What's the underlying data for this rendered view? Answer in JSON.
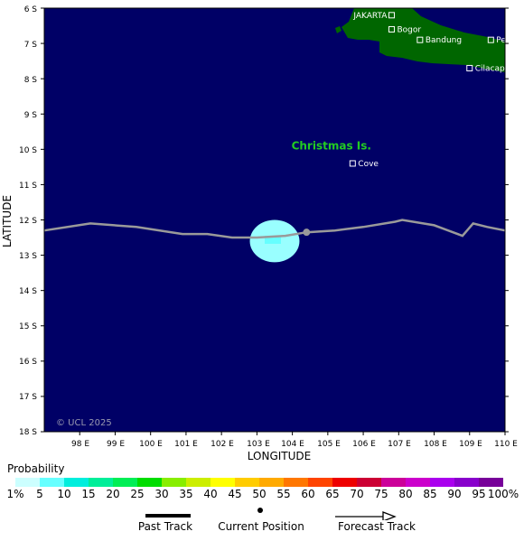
{
  "map": {
    "latitude_label": "LATITUDE",
    "longitude_label": "LONGITUDE",
    "lat_ticks": [
      "6 S",
      "7 S",
      "8 S",
      "9 S",
      "10 S",
      "11 S",
      "12 S",
      "13 S",
      "14 S",
      "15 S",
      "16 S",
      "17 S",
      "18 S"
    ],
    "lon_ticks": [
      "98 E",
      "99 E",
      "100 E",
      "101 E",
      "102 E",
      "103 E",
      "104 E",
      "105 E",
      "106 E",
      "107 E",
      "108 E",
      "109 E",
      "110 E"
    ],
    "lat_range": [
      6,
      18
    ],
    "lon_range": [
      97,
      110
    ],
    "ocean_color": "#000066",
    "land_color": "#006600",
    "copyright": "© UCL 2025",
    "island_label": "Christmas Is.",
    "places": [
      {
        "name": "JAKARTA",
        "lon": 106.8,
        "lat": 6.2
      },
      {
        "name": "Bogor",
        "lon": 106.8,
        "lat": 6.6
      },
      {
        "name": "Bandung",
        "lon": 107.6,
        "lat": 6.9
      },
      {
        "name": "Pekalongan",
        "lon": 109.6,
        "lat": 6.9
      },
      {
        "name": "Cilacap",
        "lon": 109.0,
        "lat": 7.7
      },
      {
        "name": "Cove",
        "lon": 105.7,
        "lat": 10.4
      }
    ],
    "track": [
      [
        97,
        12.3
      ],
      [
        98.3,
        12.1
      ],
      [
        99.6,
        12.2
      ],
      [
        100.9,
        12.4
      ],
      [
        101.6,
        12.4
      ],
      [
        102.3,
        12.5
      ],
      [
        103.0,
        12.5
      ],
      [
        103.8,
        12.45
      ],
      [
        104.4,
        12.35
      ],
      [
        105.2,
        12.3
      ],
      [
        106.0,
        12.2
      ],
      [
        106.9,
        12.05
      ],
      [
        107.1,
        12.0
      ],
      [
        108.0,
        12.15
      ],
      [
        108.8,
        12.45
      ],
      [
        109.1,
        12.1
      ],
      [
        109.5,
        12.2
      ],
      [
        110,
        12.3
      ]
    ],
    "current_position": {
      "lon": 104.4,
      "lat": 12.35
    },
    "probability_area": {
      "lon_min": 102.8,
      "lon_max": 104.2,
      "lat_min": 12.0,
      "lat_max": 13.2,
      "color": "#99ffff"
    }
  },
  "legend": {
    "probability_title": "Probability",
    "scale": [
      {
        "label": "1%",
        "color": "#ccffff"
      },
      {
        "label": "5",
        "color": "#66ffff"
      },
      {
        "label": "10",
        "color": "#00eedd"
      },
      {
        "label": "15",
        "color": "#00ee99"
      },
      {
        "label": "20",
        "color": "#00ee55"
      },
      {
        "label": "25",
        "color": "#00dd00"
      },
      {
        "label": "30",
        "color": "#88ee00"
      },
      {
        "label": "35",
        "color": "#ccee00"
      },
      {
        "label": "40",
        "color": "#ffff00"
      },
      {
        "label": "45",
        "color": "#ffcc00"
      },
      {
        "label": "50",
        "color": "#ffaa00"
      },
      {
        "label": "55",
        "color": "#ff7700"
      },
      {
        "label": "60",
        "color": "#ff4400"
      },
      {
        "label": "65",
        "color": "#ee0000"
      },
      {
        "label": "70",
        "color": "#cc0033"
      },
      {
        "label": "75",
        "color": "#cc0099"
      },
      {
        "label": "80",
        "color": "#cc00cc"
      },
      {
        "label": "85",
        "color": "#aa00ee"
      },
      {
        "label": "90",
        "color": "#8800cc"
      },
      {
        "label": "95",
        "color": "#770099"
      },
      {
        "label": "100%",
        "color": "#660066"
      }
    ],
    "past_track_label": "Past Track",
    "current_position_label": "Current Position",
    "forecast_track_label": "Forecast Track"
  }
}
